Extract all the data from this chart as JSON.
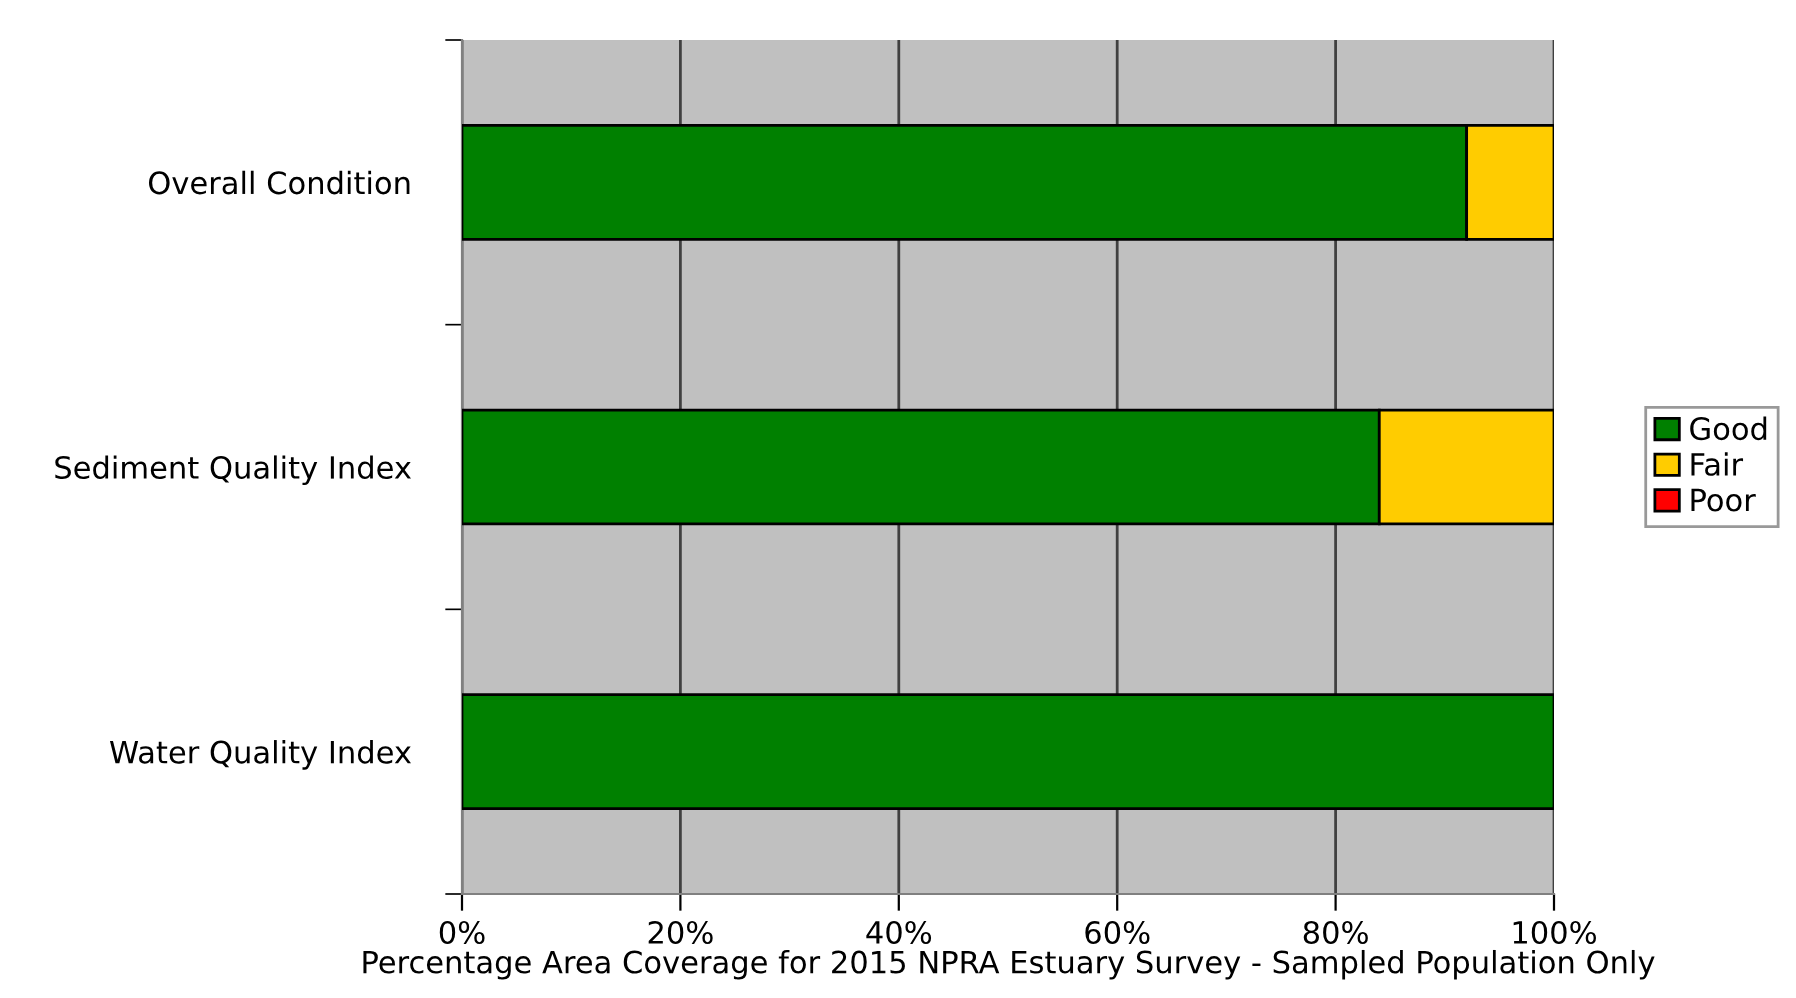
{
  "chart_data": {
    "type": "bar",
    "orientation": "horizontal",
    "stacked": true,
    "xlabel": "Percentage Area Coverage for 2015 NPRA Estuary Survey - Sampled Population Only",
    "categories": [
      "Overall Condition",
      "Sediment Quality Index",
      "Water Quality Index"
    ],
    "series": [
      {
        "name": "Good",
        "color": "#008000",
        "values": [
          92,
          84,
          100
        ]
      },
      {
        "name": "Fair",
        "color": "#ffcc00",
        "values": [
          8,
          16,
          0
        ]
      },
      {
        "name": "Poor",
        "color": "#ff0000",
        "values": [
          0,
          0,
          0
        ]
      }
    ],
    "xlim": [
      0,
      100
    ],
    "xticks": [
      {
        "value": 0,
        "label": "0%"
      },
      {
        "value": 20,
        "label": "20%"
      },
      {
        "value": 40,
        "label": "40%"
      },
      {
        "value": 60,
        "label": "60%"
      },
      {
        "value": 80,
        "label": "80%"
      },
      {
        "value": 100,
        "label": "100%"
      }
    ],
    "grid": "x",
    "legend": "right"
  }
}
